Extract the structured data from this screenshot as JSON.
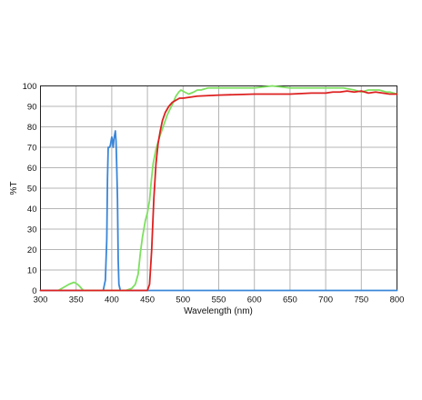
{
  "chart_data": {
    "type": "line",
    "title": "",
    "xlabel": "Wavelength (nm)",
    "ylabel": "%T",
    "xlim": [
      300,
      800
    ],
    "ylim": [
      0,
      100
    ],
    "x_ticks": [
      300,
      350,
      400,
      450,
      500,
      550,
      600,
      650,
      700,
      750,
      800
    ],
    "y_ticks": [
      0,
      10,
      20,
      30,
      40,
      50,
      60,
      70,
      80,
      90,
      100
    ],
    "grid": true,
    "legend": "none",
    "series": [
      {
        "color": "#3a86d8",
        "points": [
          [
            300,
            0
          ],
          [
            388,
            0
          ],
          [
            391,
            5
          ],
          [
            393,
            25
          ],
          [
            394,
            55
          ],
          [
            395,
            70
          ],
          [
            397,
            70
          ],
          [
            398,
            71
          ],
          [
            400,
            75
          ],
          [
            401,
            73
          ],
          [
            402,
            70
          ],
          [
            403,
            74
          ],
          [
            405,
            78
          ],
          [
            406,
            73
          ],
          [
            407,
            60
          ],
          [
            408,
            45
          ],
          [
            409,
            15
          ],
          [
            410,
            3
          ],
          [
            412,
            0
          ],
          [
            800,
            0
          ]
        ]
      },
      {
        "color": "#7ee060",
        "points": [
          [
            325,
            0
          ],
          [
            330,
            1
          ],
          [
            340,
            3
          ],
          [
            347,
            4
          ],
          [
            352,
            3
          ],
          [
            355,
            2
          ],
          [
            360,
            0
          ],
          [
            420,
            0
          ],
          [
            428,
            1
          ],
          [
            433,
            3
          ],
          [
            437,
            8
          ],
          [
            440,
            18
          ],
          [
            443,
            26
          ],
          [
            447,
            34
          ],
          [
            450,
            38
          ],
          [
            453,
            44
          ],
          [
            455,
            52
          ],
          [
            458,
            62
          ],
          [
            462,
            69
          ],
          [
            467,
            75
          ],
          [
            472,
            80
          ],
          [
            478,
            86
          ],
          [
            485,
            91
          ],
          [
            490,
            95
          ],
          [
            494,
            97
          ],
          [
            497,
            98
          ],
          [
            502,
            97
          ],
          [
            508,
            96
          ],
          [
            515,
            97
          ],
          [
            520,
            98
          ],
          [
            525,
            98
          ],
          [
            535,
            99
          ],
          [
            550,
            99
          ],
          [
            600,
            99
          ],
          [
            625,
            100
          ],
          [
            650,
            99
          ],
          [
            700,
            99
          ],
          [
            725,
            99
          ],
          [
            740,
            98
          ],
          [
            750,
            97
          ],
          [
            760,
            98
          ],
          [
            775,
            98
          ],
          [
            785,
            97
          ],
          [
            790,
            97
          ],
          [
            800,
            96
          ]
        ]
      },
      {
        "color": "#dd2020",
        "points": [
          [
            300,
            0
          ],
          [
            450,
            0
          ],
          [
            453,
            3
          ],
          [
            456,
            20
          ],
          [
            459,
            45
          ],
          [
            462,
            62
          ],
          [
            465,
            72
          ],
          [
            468,
            78
          ],
          [
            471,
            83
          ],
          [
            475,
            87
          ],
          [
            480,
            90
          ],
          [
            485,
            92
          ],
          [
            490,
            93
          ],
          [
            495,
            94
          ],
          [
            500,
            94
          ],
          [
            520,
            95
          ],
          [
            550,
            95.5
          ],
          [
            600,
            96
          ],
          [
            650,
            96
          ],
          [
            680,
            96.5
          ],
          [
            700,
            96.5
          ],
          [
            710,
            97
          ],
          [
            720,
            97
          ],
          [
            730,
            97.5
          ],
          [
            740,
            97
          ],
          [
            750,
            97.5
          ],
          [
            760,
            96.5
          ],
          [
            770,
            97
          ],
          [
            780,
            96.5
          ],
          [
            790,
            96
          ],
          [
            800,
            96
          ]
        ]
      }
    ]
  }
}
